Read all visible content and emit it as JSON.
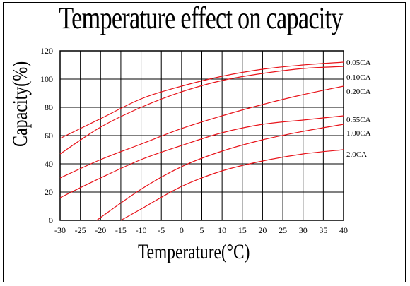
{
  "title": "Temperature effect on capacity",
  "chart_data": {
    "type": "line",
    "xlabel": "Temperature(°C)",
    "ylabel": "Capacity(%)",
    "xlim": [
      -30,
      40
    ],
    "ylim": [
      0,
      120
    ],
    "x_ticks": [
      "-30",
      "-25",
      "-20",
      "-15",
      "-10",
      "-5",
      "0",
      "5",
      "10",
      "15",
      "20",
      "25",
      "30",
      "35",
      "40"
    ],
    "y_ticks": [
      "0",
      "20",
      "40",
      "60",
      "80",
      "100",
      "120"
    ],
    "grid": true,
    "line_color": "#e8141b",
    "series": [
      {
        "name": "0.05CA",
        "x": [
          -30,
          -20,
          -10,
          0,
          10,
          20,
          30,
          40
        ],
        "y": [
          58,
          72,
          86,
          95,
          102,
          107,
          110,
          112
        ]
      },
      {
        "name": "0.10CA",
        "x": [
          -30,
          -20,
          -10,
          0,
          10,
          20,
          30,
          40
        ],
        "y": [
          47,
          66,
          80,
          91,
          99,
          104,
          107.5,
          109
        ]
      },
      {
        "name": "0.20CA",
        "x": [
          -30,
          -20,
          -10,
          0,
          10,
          20,
          30,
          40
        ],
        "y": [
          30,
          43,
          54,
          65,
          74,
          82,
          89,
          95
        ]
      },
      {
        "name": "0.55CA",
        "x": [
          -30,
          -20,
          -10,
          0,
          10,
          20,
          30,
          40
        ],
        "y": [
          16,
          30,
          43,
          53,
          62,
          68,
          71,
          74
        ]
      },
      {
        "name": "1.00CA",
        "x": [
          -21,
          -10,
          0,
          10,
          20,
          30,
          40
        ],
        "y": [
          0,
          22,
          38,
          49,
          57,
          63,
          68
        ]
      },
      {
        "name": "2.0CA",
        "x": [
          -15,
          -10,
          0,
          10,
          20,
          30,
          40
        ],
        "y": [
          0,
          8,
          24,
          35,
          42,
          47,
          50
        ]
      }
    ]
  }
}
